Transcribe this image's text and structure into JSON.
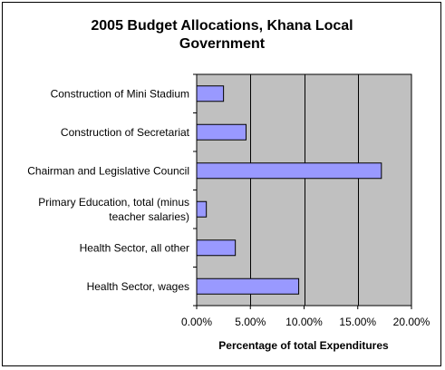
{
  "colors": {
    "plot_background": "#c0c0c0",
    "bar_fill": "#9999ff",
    "bar_stroke": "#000000",
    "gridline": "#000000"
  },
  "chart_data": {
    "type": "bar",
    "orientation": "horizontal",
    "title": "2005 Budget Allocations, Khana Local Government",
    "title_lines": [
      "2005 Budget Allocations, Khana Local",
      "Government"
    ],
    "xlabel": "Percentage of total Expenditures",
    "ylabel": "",
    "categories": [
      "Construction of Mini Stadium",
      "Construction of Secretariat",
      "Chairman and Legislative Council",
      "Primary Education, total (minus teacher salaries)",
      "Health Sector, all other",
      "Health Sector, wages"
    ],
    "category_label_lines": [
      [
        "Construction of Mini Stadium"
      ],
      [
        "Construction of Secretariat"
      ],
      [
        "Chairman and Legislative Council"
      ],
      [
        "Primary Education, total (minus",
        "teacher salaries)"
      ],
      [
        "Health Sector, all other"
      ],
      [
        "Health Sector, wages"
      ]
    ],
    "values": [
      2.5,
      4.6,
      17.2,
      0.9,
      3.6,
      9.5
    ],
    "xlim": [
      0,
      20
    ],
    "x_ticks": [
      0,
      5,
      10,
      15,
      20
    ],
    "x_tick_labels": [
      "0.00%",
      "5.00%",
      "10.00%",
      "15.00%",
      "20.00%"
    ],
    "grid": "vertical major gridlines",
    "legend": "none"
  }
}
